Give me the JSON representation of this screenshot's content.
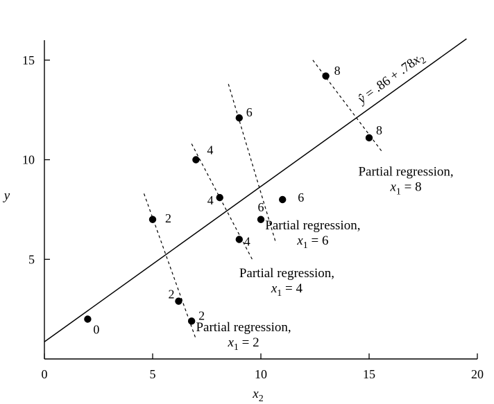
{
  "chart_data": {
    "type": "scatter",
    "title": "",
    "xlabel": "x",
    "xlabel_sub": "2",
    "ylabel": "y",
    "xlim": [
      0,
      20
    ],
    "ylim": [
      0,
      16
    ],
    "x_ticks": [
      0,
      5,
      10,
      15,
      20
    ],
    "y_ticks": [
      5,
      10,
      15
    ],
    "grid": false,
    "points": [
      {
        "x": 2,
        "y": 2,
        "label": "0"
      },
      {
        "x": 5,
        "y": 7,
        "label": "2"
      },
      {
        "x": 6.2,
        "y": 2.9,
        "label": "2"
      },
      {
        "x": 6.8,
        "y": 1.9,
        "label": "2"
      },
      {
        "x": 7,
        "y": 10,
        "label": "4"
      },
      {
        "x": 8.1,
        "y": 8.1,
        "label": "4"
      },
      {
        "x": 9,
        "y": 6,
        "label": "4"
      },
      {
        "x": 9,
        "y": 12.1,
        "label": "6"
      },
      {
        "x": 10,
        "y": 7,
        "label": "6"
      },
      {
        "x": 11,
        "y": 8,
        "label": "6"
      },
      {
        "x": 13,
        "y": 14.2,
        "label": "8"
      },
      {
        "x": 15,
        "y": 11.1,
        "label": "8"
      }
    ],
    "overall_regression": {
      "intercept": 0.86,
      "slope": 0.78,
      "label_yhat": "ŷ",
      "label_rest": " = .86 + .78",
      "label_var": "x",
      "label_sub": "2"
    },
    "partial_regressions": [
      {
        "x1": 2,
        "title": "Partial regression,",
        "eq_var": "x",
        "eq_sub": "1",
        "eq_value": " = 2",
        "line": [
          [
            4.6,
            8.3
          ],
          [
            7.0,
            1.0
          ]
        ]
      },
      {
        "x1": 4,
        "title": "Partial regression,",
        "eq_var": "x",
        "eq_sub": "1",
        "eq_value": " = 4",
        "line": [
          [
            6.8,
            10.8
          ],
          [
            9.6,
            5.0
          ]
        ]
      },
      {
        "x1": 6,
        "title": "Partial regression,",
        "eq_var": "x",
        "eq_sub": "1",
        "eq_value": " = 6",
        "line": [
          [
            8.5,
            13.8
          ],
          [
            10.7,
            5.8
          ]
        ]
      },
      {
        "x1": 8,
        "title": "Partial regression,",
        "eq_var": "x",
        "eq_sub": "1",
        "eq_value": " = 8",
        "line": [
          [
            12.4,
            15.0
          ],
          [
            15.6,
            10.4
          ]
        ]
      }
    ]
  }
}
